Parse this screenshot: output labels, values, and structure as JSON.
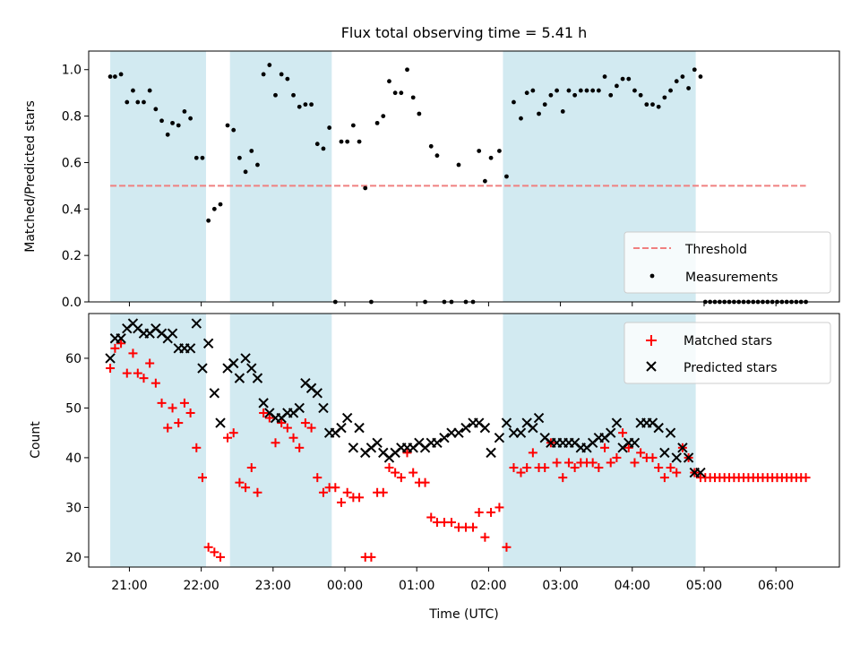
{
  "title": "Flux total observing time = 5.41 h",
  "xlabel": "Time (UTC)",
  "colors": {
    "band": "#add8e6",
    "threshold": "#f08080",
    "matched": "#ff0000",
    "predicted": "#000000",
    "measure": "#000000"
  },
  "chart_data": [
    {
      "type": "scatter",
      "panel": "top",
      "ylabel": "Matched/Predicted stars",
      "ylim": [
        0,
        1.08
      ],
      "yticks": [
        0.0,
        0.2,
        0.4,
        0.6,
        0.8,
        1.0
      ],
      "ytick_labels": [
        "0.0",
        "0.2",
        "0.4",
        "0.6",
        "0.8",
        "1.0"
      ],
      "xlim": [
        "20:26",
        "06:53"
      ],
      "xticks": [
        "21:00",
        "22:00",
        "23:00",
        "00:00",
        "01:00",
        "02:00",
        "03:00",
        "04:00",
        "05:00",
        "06:00"
      ],
      "shaded_intervals": [
        [
          "20:44",
          "22:04"
        ],
        [
          "22:24",
          "23:49"
        ],
        [
          "02:12",
          "04:53"
        ]
      ],
      "legend": {
        "position": "lower right",
        "entries": [
          "Threshold",
          "Measurements"
        ]
      },
      "threshold": {
        "name": "Threshold",
        "value": 0.5,
        "x": [
          "20:44",
          "06:25"
        ]
      },
      "series": [
        {
          "name": "Measurements",
          "x": [
            "20:44",
            "20:48",
            "20:53",
            "20:58",
            "21:03",
            "21:07",
            "21:12",
            "21:17",
            "21:22",
            "21:27",
            "21:32",
            "21:36",
            "21:41",
            "21:46",
            "21:51",
            "21:56",
            "22:01",
            "22:06",
            "22:11",
            "22:16",
            "22:22",
            "22:27",
            "22:32",
            "22:37",
            "22:42",
            "22:47",
            "22:52",
            "22:57",
            "23:02",
            "23:07",
            "23:12",
            "23:17",
            "23:22",
            "23:27",
            "23:32",
            "23:37",
            "23:42",
            "23:47",
            "23:52",
            "23:57",
            "00:02",
            "00:07",
            "00:12",
            "00:17",
            "00:22",
            "00:27",
            "00:32",
            "00:37",
            "00:42",
            "00:47",
            "00:52",
            "00:57",
            "01:02",
            "01:07",
            "01:12",
            "01:17",
            "01:23",
            "01:29",
            "01:35",
            "01:41",
            "01:47",
            "01:52",
            "01:57",
            "02:02",
            "02:09",
            "02:15",
            "02:21",
            "02:27",
            "02:32",
            "02:37",
            "02:42",
            "02:47",
            "02:52",
            "02:57",
            "03:02",
            "03:07",
            "03:12",
            "03:17",
            "03:22",
            "03:27",
            "03:32",
            "03:37",
            "03:42",
            "03:47",
            "03:52",
            "03:57",
            "04:02",
            "04:07",
            "04:12",
            "04:17",
            "04:22",
            "04:27",
            "04:32",
            "04:37",
            "04:42",
            "04:47",
            "04:52",
            "04:57",
            "05:01",
            "05:05",
            "05:09",
            "05:13",
            "05:17",
            "05:21",
            "05:25",
            "05:29",
            "05:33",
            "05:37",
            "05:41",
            "05:45",
            "05:49",
            "05:53",
            "05:57",
            "06:01",
            "06:05",
            "06:09",
            "06:13",
            "06:17",
            "06:21",
            "06:25"
          ],
          "y": [
            0.97,
            0.97,
            0.98,
            0.86,
            0.91,
            0.86,
            0.86,
            0.91,
            0.83,
            0.78,
            0.72,
            0.77,
            0.76,
            0.82,
            0.79,
            0.62,
            0.62,
            0.35,
            0.4,
            0.42,
            0.76,
            0.74,
            0.62,
            0.56,
            0.65,
            0.59,
            0.98,
            1.02,
            0.89,
            0.98,
            0.96,
            0.89,
            0.84,
            0.85,
            0.85,
            0.68,
            0.66,
            0.75,
            0.0,
            0.69,
            0.69,
            0.76,
            0.69,
            0.49,
            0.0,
            0.77,
            0.8,
            0.95,
            0.9,
            0.9,
            1.0,
            0.88,
            0.81,
            0.0,
            0.67,
            0.63,
            0.0,
            0.0,
            0.59,
            0.0,
            0.0,
            0.65,
            0.52,
            0.62,
            0.65,
            0.54,
            0.86,
            0.79,
            0.9,
            0.91,
            0.81,
            0.85,
            0.89,
            0.91,
            0.82,
            0.91,
            0.89,
            0.91,
            0.91,
            0.91,
            0.91,
            0.97,
            0.89,
            0.93,
            0.96,
            0.96,
            0.91,
            0.89,
            0.85,
            0.85,
            0.84,
            0.88,
            0.91,
            0.95,
            0.97,
            0.92,
            1.0,
            0.97,
            0.0,
            0.0,
            0.0,
            0.0,
            0.0,
            0.0,
            0.0,
            0.0,
            0.0,
            0.0,
            0.0,
            0.0,
            0.0,
            0.0,
            0.0,
            0.0,
            0.0,
            0.0,
            0.0,
            0.0,
            0.0,
            0.0
          ]
        }
      ]
    },
    {
      "type": "scatter",
      "panel": "bottom",
      "ylabel": "Count",
      "ylim": [
        18,
        69
      ],
      "yticks": [
        20,
        30,
        40,
        50,
        60
      ],
      "ytick_labels": [
        "20",
        "30",
        "40",
        "50",
        "60"
      ],
      "xlim": [
        "20:26",
        "06:53"
      ],
      "xticks": [
        "21:00",
        "22:00",
        "23:00",
        "00:00",
        "01:00",
        "02:00",
        "03:00",
        "04:00",
        "05:00",
        "06:00"
      ],
      "shaded_intervals": [
        [
          "20:44",
          "22:04"
        ],
        [
          "22:24",
          "23:49"
        ],
        [
          "02:12",
          "04:53"
        ]
      ],
      "legend": {
        "position": "upper right",
        "entries": [
          "Matched stars",
          "Predicted stars"
        ]
      },
      "series": [
        {
          "name": "Matched stars",
          "x": [
            "20:44",
            "20:48",
            "20:53",
            "20:58",
            "21:03",
            "21:07",
            "21:12",
            "21:17",
            "21:22",
            "21:27",
            "21:32",
            "21:36",
            "21:41",
            "21:46",
            "21:51",
            "21:56",
            "22:01",
            "22:06",
            "22:11",
            "22:16",
            "22:22",
            "22:27",
            "22:32",
            "22:37",
            "22:42",
            "22:47",
            "22:52",
            "22:57",
            "23:02",
            "23:07",
            "23:12",
            "23:17",
            "23:22",
            "23:27",
            "23:32",
            "23:37",
            "23:42",
            "23:47",
            "23:52",
            "23:57",
            "00:02",
            "00:07",
            "00:12",
            "00:17",
            "00:22",
            "00:27",
            "00:32",
            "00:37",
            "00:42",
            "00:47",
            "00:52",
            "00:57",
            "01:02",
            "01:07",
            "01:12",
            "01:17",
            "01:23",
            "01:29",
            "01:35",
            "01:41",
            "01:47",
            "01:52",
            "01:57",
            "02:02",
            "02:09",
            "02:15",
            "02:21",
            "02:27",
            "02:32",
            "02:37",
            "02:42",
            "02:47",
            "02:52",
            "02:57",
            "03:02",
            "03:07",
            "03:12",
            "03:17",
            "03:22",
            "03:27",
            "03:32",
            "03:37",
            "03:42",
            "03:47",
            "03:52",
            "03:57",
            "04:02",
            "04:07",
            "04:12",
            "04:17",
            "04:22",
            "04:27",
            "04:32",
            "04:37",
            "04:42",
            "04:47",
            "04:52",
            "04:57",
            "05:01",
            "05:05",
            "05:09",
            "05:13",
            "05:17",
            "05:21",
            "05:25",
            "05:29",
            "05:33",
            "05:37",
            "05:41",
            "05:45",
            "05:49",
            "05:53",
            "05:57",
            "06:01",
            "06:05",
            "06:09",
            "06:13",
            "06:17",
            "06:21",
            "06:25"
          ],
          "y": [
            58,
            62,
            63,
            57,
            61,
            57,
            56,
            59,
            55,
            51,
            46,
            50,
            47,
            51,
            49,
            42,
            36,
            22,
            21,
            20,
            44,
            45,
            35,
            34,
            38,
            33,
            49,
            48,
            43,
            47,
            46,
            44,
            42,
            47,
            46,
            36,
            33,
            34,
            34,
            31,
            33,
            32,
            32,
            20,
            20,
            33,
            33,
            38,
            37,
            36,
            41,
            37,
            35,
            35,
            28,
            27,
            27,
            27,
            26,
            26,
            26,
            29,
            24,
            29,
            30,
            22,
            38,
            37,
            38,
            41,
            38,
            38,
            43,
            39,
            36,
            39,
            38,
            39,
            39,
            39,
            38,
            42,
            39,
            40,
            45,
            42,
            39,
            41,
            40,
            40,
            38,
            36,
            38,
            37,
            42,
            40,
            37,
            36,
            36,
            36,
            36,
            36,
            36,
            36,
            36,
            36,
            36,
            36,
            36,
            36,
            36,
            36,
            36,
            36,
            36,
            36,
            36,
            36,
            36,
            36
          ]
        },
        {
          "name": "Predicted stars",
          "x": [
            "20:44",
            "20:48",
            "20:53",
            "20:58",
            "21:03",
            "21:07",
            "21:12",
            "21:17",
            "21:22",
            "21:27",
            "21:32",
            "21:36",
            "21:41",
            "21:46",
            "21:51",
            "21:56",
            "22:01",
            "22:06",
            "22:11",
            "22:16",
            "22:22",
            "22:27",
            "22:32",
            "22:37",
            "22:42",
            "22:47",
            "22:52",
            "22:57",
            "23:02",
            "23:07",
            "23:12",
            "23:17",
            "23:22",
            "23:27",
            "23:32",
            "23:37",
            "23:42",
            "23:47",
            "23:52",
            "23:57",
            "00:02",
            "00:07",
            "00:12",
            "00:17",
            "00:22",
            "00:27",
            "00:32",
            "00:37",
            "00:42",
            "00:47",
            "00:52",
            "00:57",
            "01:02",
            "01:07",
            "01:12",
            "01:17",
            "01:23",
            "01:29",
            "01:35",
            "01:41",
            "01:47",
            "01:52",
            "01:57",
            "02:02",
            "02:09",
            "02:15",
            "02:21",
            "02:27",
            "02:32",
            "02:37",
            "02:42",
            "02:47",
            "02:52",
            "02:57",
            "03:02",
            "03:07",
            "03:12",
            "03:17",
            "03:22",
            "03:27",
            "03:32",
            "03:37",
            "03:42",
            "03:47",
            "03:52",
            "03:57",
            "04:02",
            "04:07",
            "04:12",
            "04:17",
            "04:22",
            "04:27",
            "04:32",
            "04:37",
            "04:42",
            "04:47",
            "04:52",
            "04:57"
          ],
          "y": [
            60,
            64,
            64,
            66,
            67,
            66,
            65,
            65,
            66,
            65,
            64,
            65,
            62,
            62,
            62,
            67,
            58,
            63,
            53,
            47,
            58,
            59,
            56,
            60,
            58,
            56,
            51,
            49,
            48,
            48,
            49,
            49,
            50,
            55,
            54,
            53,
            50,
            45,
            45,
            46,
            48,
            42,
            46,
            41,
            42,
            43,
            41,
            40,
            41,
            42,
            42,
            42,
            43,
            42,
            43,
            43,
            44,
            45,
            45,
            46,
            47,
            47,
            46,
            41,
            44,
            47,
            45,
            45,
            47,
            46,
            48,
            44,
            43,
            43,
            43,
            43,
            43,
            42,
            42,
            43,
            44,
            44,
            45,
            47,
            42,
            43,
            43,
            47,
            47,
            47,
            46,
            41,
            45,
            40,
            42,
            40,
            37,
            37
          ]
        }
      ]
    }
  ]
}
